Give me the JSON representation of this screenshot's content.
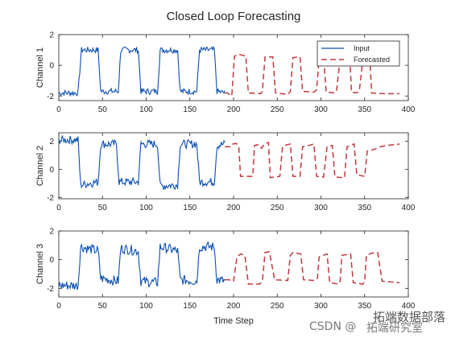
{
  "chart_data": {
    "type": "line",
    "title": "Closed Loop Forecasting",
    "xlabel": "Time Step",
    "xlim": [
      0,
      400
    ],
    "xticks": [
      0,
      50,
      100,
      150,
      200,
      250,
      300,
      350,
      400
    ],
    "legend": {
      "position": "top-right",
      "entries": [
        "Input",
        "Forecasted"
      ]
    },
    "colors": {
      "input": "#0b4fb3",
      "forecast": "#c4393b",
      "axis": "#262626"
    },
    "grid": false,
    "panels": [
      {
        "ylabel": "Channel 1",
        "ylim": [
          -2.3,
          2
        ],
        "yticks": [
          -2,
          0,
          2
        ],
        "input_segments": [
          [
            0,
            -1.8
          ],
          [
            22,
            -1.8
          ],
          [
            26,
            1.0
          ],
          [
            45,
            1.0
          ],
          [
            48,
            -1.7
          ],
          [
            68,
            -1.7
          ],
          [
            71,
            1.0
          ],
          [
            91,
            1.0
          ],
          [
            94,
            -1.7
          ],
          [
            113,
            -1.7
          ],
          [
            116,
            1.0
          ],
          [
            136,
            1.0
          ],
          [
            139,
            -1.7
          ],
          [
            158,
            -1.7
          ],
          [
            161,
            1.0
          ],
          [
            178,
            1.0
          ],
          [
            181,
            -1.7
          ],
          [
            190,
            -1.8
          ]
        ],
        "input_noise": 0.2,
        "forecast": [
          [
            190,
            -1.8
          ],
          [
            193,
            -1.8
          ],
          [
            198,
            -2.0
          ],
          [
            201,
            0.6
          ],
          [
            207,
            0.7
          ],
          [
            214,
            0.6
          ],
          [
            217,
            -1.8
          ],
          [
            231,
            -1.85
          ],
          [
            233,
            -1.7
          ],
          [
            236,
            0.55
          ],
          [
            245,
            0.55
          ],
          [
            248,
            -1.8
          ],
          [
            262,
            -1.9
          ],
          [
            265,
            -1.7
          ],
          [
            268,
            0.5
          ],
          [
            276,
            0.55
          ],
          [
            279,
            -1.7
          ],
          [
            292,
            -1.75
          ],
          [
            295,
            -1.6
          ],
          [
            298,
            0.5
          ],
          [
            303,
            0.55
          ],
          [
            306,
            -1.75
          ],
          [
            316,
            -1.8
          ],
          [
            318,
            -1.6
          ],
          [
            322,
            0.5
          ],
          [
            333,
            0.55
          ],
          [
            335,
            -1.75
          ],
          [
            341,
            -1.8
          ],
          [
            344,
            -1.65
          ],
          [
            348,
            0.4
          ],
          [
            356,
            0.45
          ],
          [
            358,
            -1.8
          ],
          [
            370,
            -1.85
          ],
          [
            390,
            -1.85
          ]
        ]
      },
      {
        "ylabel": "Channel 2",
        "ylim": [
          -2.1,
          2.6
        ],
        "yticks": [
          -2,
          0,
          2
        ],
        "input_segments": [
          [
            0,
            2.1
          ],
          [
            22,
            2.1
          ],
          [
            25,
            -1.1
          ],
          [
            45,
            -0.9
          ],
          [
            48,
            1.8
          ],
          [
            66,
            1.8
          ],
          [
            69,
            -0.9
          ],
          [
            91,
            -0.9
          ],
          [
            94,
            1.8
          ],
          [
            113,
            1.8
          ],
          [
            116,
            -1.2
          ],
          [
            136,
            -1.1
          ],
          [
            139,
            1.8
          ],
          [
            158,
            1.8
          ],
          [
            161,
            -0.9
          ],
          [
            178,
            -0.9
          ],
          [
            181,
            1.7
          ],
          [
            190,
            1.8
          ]
        ],
        "input_noise": 0.3,
        "forecast": [
          [
            190,
            1.6
          ],
          [
            197,
            1.6
          ],
          [
            199,
            1.8
          ],
          [
            203,
            1.85
          ],
          [
            206,
            1.6
          ],
          [
            208,
            -0.5
          ],
          [
            222,
            -0.5
          ],
          [
            224,
            1.7
          ],
          [
            229,
            1.75
          ],
          [
            232,
            1.5
          ],
          [
            236,
            1.85
          ],
          [
            240,
            1.9
          ],
          [
            242,
            -0.6
          ],
          [
            253,
            -0.5
          ],
          [
            256,
            1.6
          ],
          [
            261,
            1.75
          ],
          [
            265,
            1.8
          ],
          [
            268,
            -0.5
          ],
          [
            276,
            -0.5
          ],
          [
            279,
            1.6
          ],
          [
            286,
            1.7
          ],
          [
            292,
            1.8
          ],
          [
            295,
            -0.5
          ],
          [
            303,
            -0.55
          ],
          [
            307,
            1.6
          ],
          [
            313,
            1.7
          ],
          [
            316,
            -0.55
          ],
          [
            327,
            -0.6
          ],
          [
            330,
            1.6
          ],
          [
            335,
            1.75
          ],
          [
            338,
            1.8
          ],
          [
            341,
            -0.4
          ],
          [
            350,
            -0.5
          ],
          [
            353,
            1.3
          ],
          [
            360,
            1.4
          ],
          [
            368,
            1.6
          ],
          [
            375,
            1.7
          ],
          [
            390,
            1.8
          ]
        ]
      },
      {
        "ylabel": "Channel 3",
        "ylim": [
          -2.6,
          2
        ],
        "yticks": [
          -2,
          0,
          2
        ],
        "input_segments": [
          [
            0,
            -1.8
          ],
          [
            22,
            -1.8
          ],
          [
            25,
            0.9
          ],
          [
            45,
            0.6
          ],
          [
            48,
            -1.3
          ],
          [
            68,
            -1.5
          ],
          [
            71,
            0.8
          ],
          [
            91,
            0.6
          ],
          [
            94,
            -1.5
          ],
          [
            113,
            -1.6
          ],
          [
            116,
            0.9
          ],
          [
            136,
            0.6
          ],
          [
            139,
            -1.4
          ],
          [
            158,
            -1.5
          ],
          [
            161,
            0.9
          ],
          [
            178,
            0.9
          ],
          [
            181,
            -1.4
          ],
          [
            190,
            -1.5
          ]
        ],
        "input_noise": 0.35,
        "forecast": [
          [
            190,
            -1.4
          ],
          [
            195,
            -1.4
          ],
          [
            198,
            -1.5
          ],
          [
            200,
            -1.5
          ],
          [
            204,
            0.2
          ],
          [
            208,
            0.4
          ],
          [
            213,
            0.3
          ],
          [
            217,
            -1.7
          ],
          [
            230,
            -1.7
          ],
          [
            233,
            -1.5
          ],
          [
            236,
            0.5
          ],
          [
            241,
            0.55
          ],
          [
            247,
            -1.4
          ],
          [
            262,
            -1.45
          ],
          [
            265,
            0.3
          ],
          [
            268,
            0.5
          ],
          [
            277,
            0.4
          ],
          [
            280,
            -1.4
          ],
          [
            293,
            -1.45
          ],
          [
            296,
            -1.3
          ],
          [
            298,
            0.2
          ],
          [
            307,
            0.4
          ],
          [
            310,
            -1.6
          ],
          [
            320,
            -1.7
          ],
          [
            322,
            -1.5
          ],
          [
            324,
            0.3
          ],
          [
            334,
            0.4
          ],
          [
            337,
            -1.6
          ],
          [
            348,
            -1.7
          ],
          [
            350,
            -1.5
          ],
          [
            352,
            0.3
          ],
          [
            358,
            0.45
          ],
          [
            365,
            0.5
          ],
          [
            370,
            -1.5
          ],
          [
            390,
            -1.6
          ]
        ]
      }
    ]
  },
  "watermark": {
    "line1": "CSDN @",
    "line2": "拓端数据部落",
    "line3": "拓端研究室"
  }
}
